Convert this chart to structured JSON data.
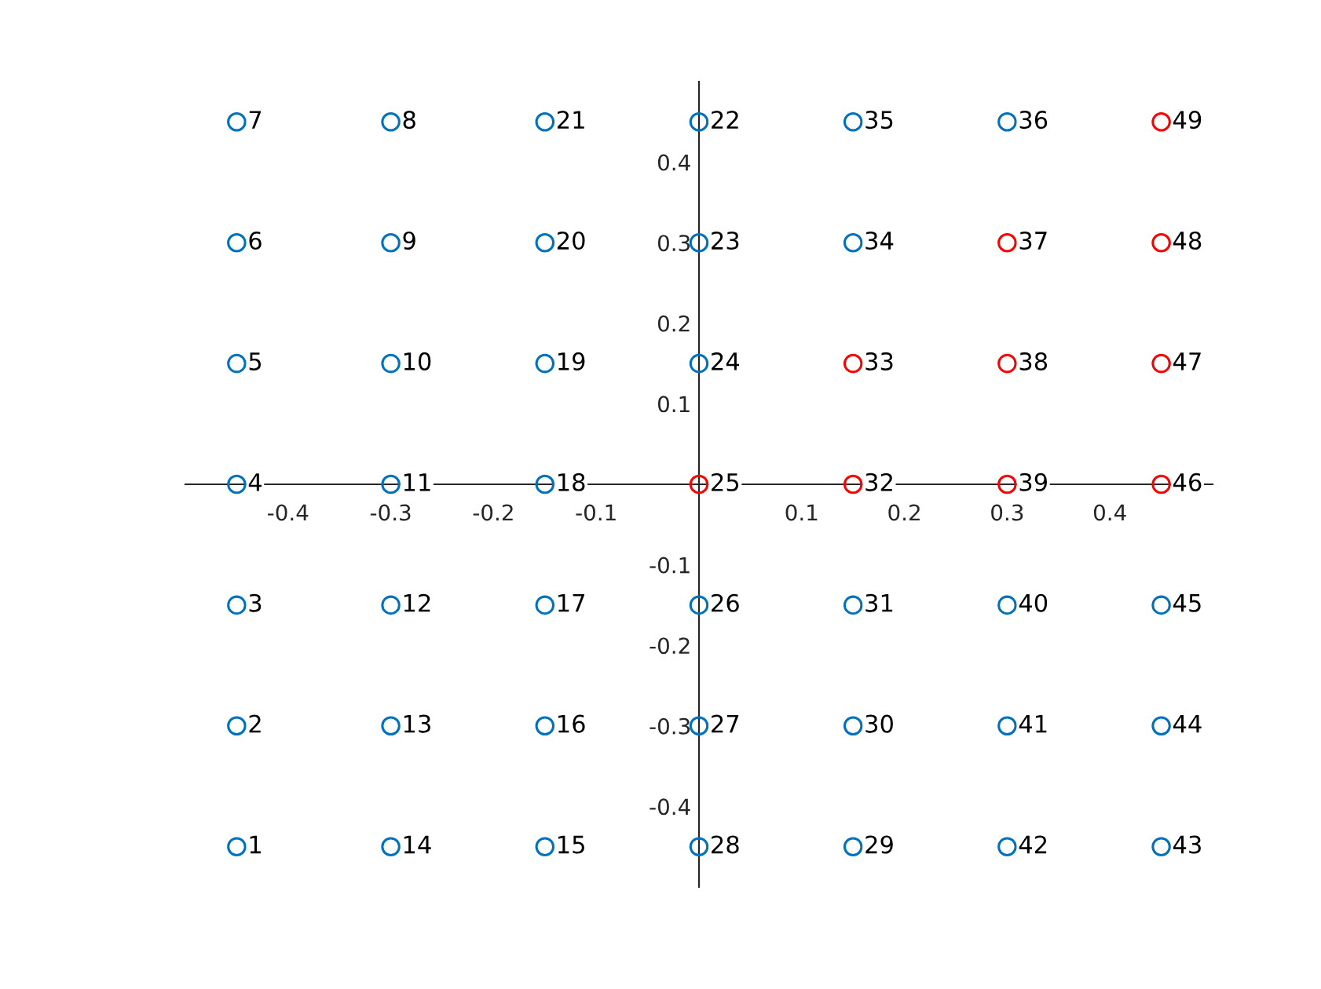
{
  "chart_data": {
    "type": "scatter",
    "xlim": [
      -0.5,
      0.5
    ],
    "ylim": [
      -0.5,
      0.5
    ],
    "xticks": [
      {
        "value": -0.4,
        "label": "-0.4"
      },
      {
        "value": -0.3,
        "label": "-0.3"
      },
      {
        "value": -0.2,
        "label": "-0.2"
      },
      {
        "value": -0.1,
        "label": "-0.1"
      },
      0.1,
      0.2,
      0.3,
      0.4
    ],
    "yticks": [
      {
        "value": -0.4,
        "label": "-0.4"
      },
      {
        "value": -0.3,
        "label": "-0.3"
      },
      {
        "value": -0.2,
        "label": "-0.2"
      },
      {
        "value": -0.1,
        "label": "-0.1"
      },
      0.1,
      0.2,
      0.3,
      0.4
    ],
    "grid": false,
    "marker": "circle",
    "series": [
      {
        "color": "#0072bd",
        "x": [
          -0.45,
          -0.45,
          -0.45,
          -0.45,
          -0.45,
          -0.45,
          -0.45,
          -0.3,
          -0.3,
          -0.3,
          -0.3,
          -0.3,
          -0.3,
          -0.3,
          -0.15,
          -0.15,
          -0.15,
          -0.15,
          -0.15,
          -0.15,
          -0.15,
          0,
          0,
          0,
          0,
          0,
          0,
          0.15,
          0.15,
          0.15,
          0.15,
          0.15,
          0.3,
          0.3,
          0.3,
          0.3,
          0.45,
          0.45,
          0.45
        ],
        "values": [
          -0.45,
          -0.3,
          -0.15,
          0,
          0.15,
          0.3,
          0.45,
          0.45,
          0.3,
          0.15,
          0,
          -0.15,
          -0.3,
          -0.45,
          -0.45,
          -0.3,
          -0.15,
          0,
          0.15,
          0.3,
          0.45,
          0.45,
          0.3,
          0.15,
          -0.15,
          -0.3,
          -0.45,
          -0.45,
          -0.3,
          -0.15,
          0.3,
          0.45,
          0.45,
          -0.15,
          -0.3,
          -0.45,
          -0.45,
          -0.3,
          -0.15
        ]
      },
      {
        "color": "#ff0000",
        "x": [
          0,
          0.15,
          0.15,
          0.3,
          0.3,
          0.3,
          0.45,
          0.45,
          0.45,
          0.45
        ],
        "values": [
          0,
          0,
          0.15,
          0.3,
          0.15,
          0,
          0,
          0.15,
          0.3,
          0.45
        ]
      }
    ],
    "annotations": [
      {
        "text": "1",
        "x": -0.45,
        "y": -0.45
      },
      {
        "text": "2",
        "x": -0.45,
        "y": -0.3
      },
      {
        "text": "3",
        "x": -0.45,
        "y": -0.15
      },
      {
        "text": "4",
        "x": -0.45,
        "y": 0
      },
      {
        "text": "5",
        "x": -0.45,
        "y": 0.15
      },
      {
        "text": "6",
        "x": -0.45,
        "y": 0.3
      },
      {
        "text": "7",
        "x": -0.45,
        "y": 0.45
      },
      {
        "text": "8",
        "x": -0.3,
        "y": 0.45
      },
      {
        "text": "9",
        "x": -0.3,
        "y": 0.3
      },
      {
        "text": "10",
        "x": -0.3,
        "y": 0.15
      },
      {
        "text": "11",
        "x": -0.3,
        "y": 0
      },
      {
        "text": "12",
        "x": -0.3,
        "y": -0.15
      },
      {
        "text": "13",
        "x": -0.3,
        "y": -0.3
      },
      {
        "text": "14",
        "x": -0.3,
        "y": -0.45
      },
      {
        "text": "15",
        "x": -0.15,
        "y": -0.45
      },
      {
        "text": "16",
        "x": -0.15,
        "y": -0.3
      },
      {
        "text": "17",
        "x": -0.15,
        "y": -0.15
      },
      {
        "text": "18",
        "x": -0.15,
        "y": 0
      },
      {
        "text": "19",
        "x": -0.15,
        "y": 0.15
      },
      {
        "text": "20",
        "x": -0.15,
        "y": 0.3
      },
      {
        "text": "21",
        "x": -0.15,
        "y": 0.45
      },
      {
        "text": "22",
        "x": 0,
        "y": 0.45
      },
      {
        "text": "23",
        "x": 0,
        "y": 0.3
      },
      {
        "text": "24",
        "x": 0,
        "y": 0.15
      },
      {
        "text": "25",
        "x": 0,
        "y": 0
      },
      {
        "text": "26",
        "x": 0,
        "y": -0.15
      },
      {
        "text": "27",
        "x": 0,
        "y": -0.3
      },
      {
        "text": "28",
        "x": 0,
        "y": -0.45
      },
      {
        "text": "29",
        "x": 0.15,
        "y": -0.45
      },
      {
        "text": "30",
        "x": 0.15,
        "y": -0.3
      },
      {
        "text": "31",
        "x": 0.15,
        "y": -0.15
      },
      {
        "text": "32",
        "x": 0.15,
        "y": 0
      },
      {
        "text": "33",
        "x": 0.15,
        "y": 0.15
      },
      {
        "text": "34",
        "x": 0.15,
        "y": 0.3
      },
      {
        "text": "35",
        "x": 0.15,
        "y": 0.45
      },
      {
        "text": "36",
        "x": 0.3,
        "y": 0.45
      },
      {
        "text": "37",
        "x": 0.3,
        "y": 0.3
      },
      {
        "text": "38",
        "x": 0.3,
        "y": 0.15
      },
      {
        "text": "39",
        "x": 0.3,
        "y": 0
      },
      {
        "text": "40",
        "x": 0.3,
        "y": -0.15
      },
      {
        "text": "41",
        "x": 0.3,
        "y": -0.3
      },
      {
        "text": "42",
        "x": 0.3,
        "y": -0.45
      },
      {
        "text": "43",
        "x": 0.45,
        "y": -0.45
      },
      {
        "text": "44",
        "x": 0.45,
        "y": -0.3
      },
      {
        "text": "45",
        "x": 0.45,
        "y": -0.15
      },
      {
        "text": "46",
        "x": 0.45,
        "y": 0
      },
      {
        "text": "47",
        "x": 0.45,
        "y": 0.15
      },
      {
        "text": "48",
        "x": 0.45,
        "y": 0.3
      },
      {
        "text": "49",
        "x": 0.45,
        "y": 0.45
      }
    ]
  }
}
